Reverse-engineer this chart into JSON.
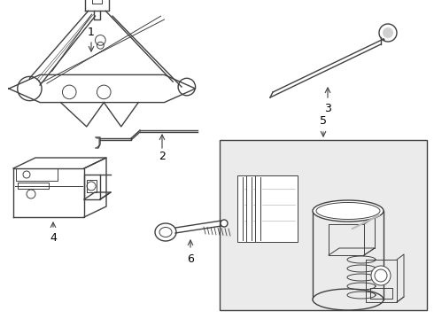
{
  "bg_color": "#ffffff",
  "line_color": "#404040",
  "label_color": "#000000",
  "fig_w": 4.9,
  "fig_h": 3.6,
  "dpi": 100
}
